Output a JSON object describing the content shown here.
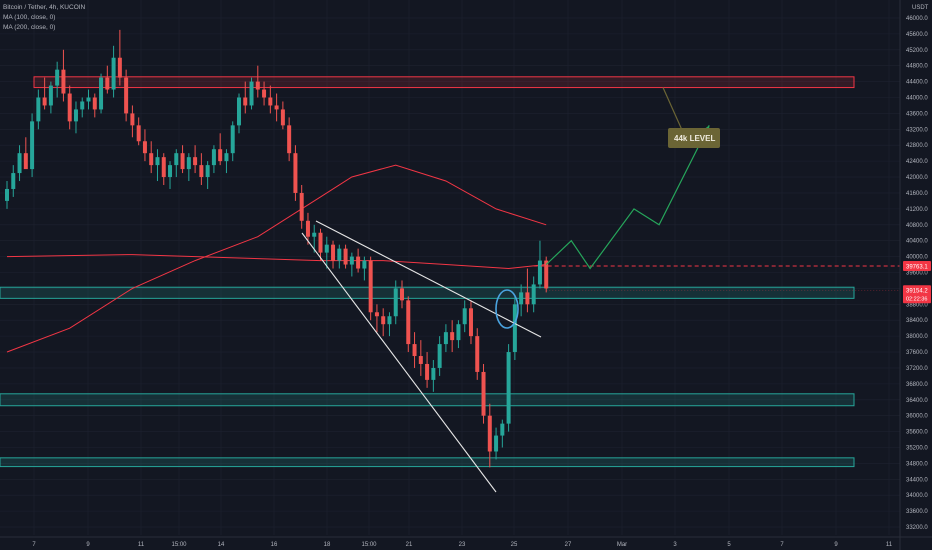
{
  "chart_data": {
    "type": "candlestick",
    "symbol_line": "Bitcoin / Tether, 4h, KUCOIN",
    "indicators": [
      {
        "label": "MA (100, close, 0)",
        "color": "#f23645"
      },
      {
        "label": "MA (200, close, 0)",
        "color": "#f23645"
      }
    ],
    "y_currency": "USDT",
    "y_range": [
      33000,
      46200
    ],
    "y_ticks": [
      "46000.0",
      "45600.0",
      "45200.0",
      "44800.0",
      "44400.0",
      "44000.0",
      "43600.0",
      "43200.0",
      "42800.0",
      "42400.0",
      "42000.0",
      "41600.0",
      "41200.0",
      "40800.0",
      "40400.0",
      "40000.0",
      "39600.0",
      "39200.0",
      "38800.0",
      "38400.0",
      "38000.0",
      "37600.0",
      "37200.0",
      "36800.0",
      "36400.0",
      "36000.0",
      "35600.0",
      "35200.0",
      "34800.0",
      "34400.0",
      "34000.0",
      "33600.0",
      "33200.0"
    ],
    "x_ticks": [
      "7",
      "9",
      "11",
      "15:00",
      "14",
      "16",
      "18",
      "15:00",
      "21",
      "23",
      "25",
      "27",
      "Mar",
      "3",
      "5",
      "7",
      "9",
      "11"
    ],
    "price_labels": {
      "level_dashed": "39763.1",
      "current": "39154.2",
      "current_sub": "02:22:36"
    },
    "zones": [
      {
        "kind": "resistance",
        "from": 44250,
        "to": 44520,
        "color": "#f23645"
      },
      {
        "kind": "support",
        "from": 38950,
        "to": 39230,
        "color": "#26a69a"
      },
      {
        "kind": "support",
        "from": 36250,
        "to": 36550,
        "color": "#26a69a"
      },
      {
        "kind": "support",
        "from": 34720,
        "to": 34940,
        "color": "#26a69a"
      }
    ],
    "annotation": {
      "text": "44k LEVEL",
      "color": "#6b6535"
    },
    "candles": [
      [
        41400,
        41900,
        41200,
        41700
      ],
      [
        41700,
        42300,
        41500,
        42100
      ],
      [
        42100,
        42800,
        41900,
        42600
      ],
      [
        42600,
        43000,
        42300,
        42200
      ],
      [
        42200,
        43600,
        42000,
        43400
      ],
      [
        43400,
        44200,
        43200,
        44000
      ],
      [
        44000,
        44500,
        43700,
        43800
      ],
      [
        43800,
        44400,
        43600,
        44300
      ],
      [
        44300,
        44900,
        44000,
        44700
      ],
      [
        44700,
        45200,
        43900,
        44100
      ],
      [
        44100,
        44300,
        43200,
        43400
      ],
      [
        43400,
        43900,
        43100,
        43700
      ],
      [
        43700,
        44000,
        43500,
        43900
      ],
      [
        43900,
        44200,
        43700,
        44000
      ],
      [
        44000,
        44100,
        43500,
        43700
      ],
      [
        43700,
        44600,
        43600,
        44500
      ],
      [
        44500,
        44800,
        44100,
        44200
      ],
      [
        44200,
        45300,
        44000,
        45000
      ],
      [
        45000,
        45700,
        44300,
        44500
      ],
      [
        44500,
        44700,
        43400,
        43600
      ],
      [
        43600,
        43800,
        43000,
        43300
      ],
      [
        43300,
        43500,
        42800,
        42900
      ],
      [
        42900,
        43200,
        42400,
        42600
      ],
      [
        42600,
        42900,
        42100,
        42300
      ],
      [
        42300,
        42700,
        41900,
        42500
      ],
      [
        42500,
        42600,
        41800,
        42000
      ],
      [
        42000,
        42400,
        41700,
        42300
      ],
      [
        42300,
        42700,
        42000,
        42600
      ],
      [
        42600,
        42800,
        42100,
        42200
      ],
      [
        42200,
        42600,
        41900,
        42500
      ],
      [
        42500,
        42800,
        42100,
        42300
      ],
      [
        42300,
        42600,
        41800,
        42000
      ],
      [
        42000,
        42400,
        41700,
        42300
      ],
      [
        42300,
        42800,
        42100,
        42700
      ],
      [
        42700,
        43100,
        42300,
        42400
      ],
      [
        42400,
        42700,
        42100,
        42600
      ],
      [
        42600,
        43400,
        42400,
        43300
      ],
      [
        43300,
        44100,
        43100,
        44000
      ],
      [
        44000,
        44400,
        43600,
        43800
      ],
      [
        43800,
        44500,
        43700,
        44400
      ],
      [
        44400,
        44800,
        44000,
        44200
      ],
      [
        44200,
        44400,
        43800,
        44000
      ],
      [
        44000,
        44300,
        43600,
        43800
      ],
      [
        43800,
        44100,
        43400,
        43700
      ],
      [
        43700,
        43900,
        43200,
        43300
      ],
      [
        43300,
        43500,
        42400,
        42600
      ],
      [
        42600,
        42800,
        41400,
        41600
      ],
      [
        41600,
        41800,
        40700,
        40900
      ],
      [
        40900,
        41100,
        40300,
        40500
      ],
      [
        40500,
        40800,
        40100,
        40600
      ],
      [
        40600,
        40700,
        39900,
        40100
      ],
      [
        40100,
        40500,
        39700,
        40300
      ],
      [
        40300,
        40400,
        39700,
        39900
      ],
      [
        39900,
        40300,
        39700,
        40200
      ],
      [
        40200,
        40300,
        39700,
        39800
      ],
      [
        39800,
        40100,
        39500,
        40000
      ],
      [
        40000,
        40200,
        39600,
        39700
      ],
      [
        39700,
        40000,
        39400,
        39900
      ],
      [
        39900,
        40000,
        38400,
        38600
      ],
      [
        38600,
        38800,
        38100,
        38500
      ],
      [
        38500,
        38700,
        38000,
        38300
      ],
      [
        38300,
        38600,
        38000,
        38500
      ],
      [
        38500,
        39400,
        38300,
        39200
      ],
      [
        39200,
        39400,
        38700,
        38900
      ],
      [
        38900,
        39000,
        37600,
        37800
      ],
      [
        37800,
        38100,
        37200,
        37500
      ],
      [
        37500,
        37900,
        37000,
        37300
      ],
      [
        37300,
        37600,
        36700,
        36900
      ],
      [
        36900,
        37400,
        36600,
        37200
      ],
      [
        37200,
        38000,
        37000,
        37800
      ],
      [
        37800,
        38300,
        37600,
        38100
      ],
      [
        38100,
        38400,
        37600,
        37900
      ],
      [
        37900,
        38400,
        37700,
        38300
      ],
      [
        38300,
        38900,
        38100,
        38700
      ],
      [
        38700,
        38900,
        37800,
        38000
      ],
      [
        38000,
        38200,
        36900,
        37100
      ],
      [
        37100,
        37300,
        35800,
        36000
      ],
      [
        36000,
        36300,
        34700,
        35100
      ],
      [
        35100,
        35700,
        34900,
        35500
      ],
      [
        35500,
        35900,
        35200,
        35800
      ],
      [
        35800,
        37800,
        35600,
        37600
      ],
      [
        37600,
        39000,
        37400,
        38800
      ],
      [
        38800,
        39300,
        38500,
        39100
      ],
      [
        39100,
        39700,
        38600,
        38800
      ],
      [
        38800,
        39500,
        38600,
        39300
      ],
      [
        39300,
        40400,
        39200,
        39900
      ],
      [
        39900,
        40000,
        39100,
        39200
      ]
    ],
    "ma_100": [
      [
        0,
        40000
      ],
      [
        20,
        40050
      ],
      [
        40,
        39950
      ],
      [
        50,
        39900
      ],
      [
        60,
        39900
      ],
      [
        70,
        39800
      ],
      [
        80,
        39700
      ],
      [
        86,
        39800
      ]
    ],
    "ma_200": [
      [
        0,
        37600
      ],
      [
        10,
        38200
      ],
      [
        20,
        39200
      ],
      [
        30,
        39900
      ],
      [
        40,
        40500
      ],
      [
        50,
        41500
      ],
      [
        55,
        42000
      ],
      [
        62,
        42300
      ],
      [
        70,
        41900
      ],
      [
        78,
        41200
      ],
      [
        86,
        40800
      ]
    ],
    "projection": [
      [
        86,
        39800
      ],
      [
        90,
        40400
      ],
      [
        93,
        39700
      ],
      [
        100,
        41200
      ],
      [
        104,
        40800
      ],
      [
        112,
        43300
      ]
    ]
  }
}
